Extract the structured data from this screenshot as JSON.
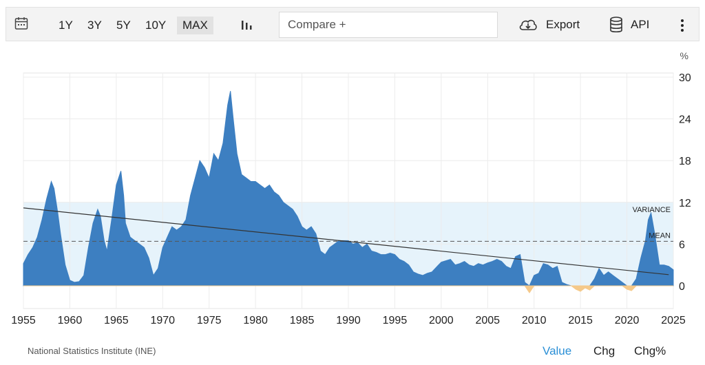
{
  "toolbar": {
    "ranges": [
      "1Y",
      "3Y",
      "5Y",
      "10Y",
      "MAX"
    ],
    "active_range": "MAX",
    "compare_placeholder": "Compare +",
    "export_label": "Export",
    "api_label": "API",
    "icons": {
      "calendar": "calendar-icon",
      "chart_type": "bar-chart-icon",
      "export": "cloud-download-icon",
      "api": "database-icon",
      "menu": "vertical-dots-icon"
    }
  },
  "footer": {
    "source": "National Statistics Institute (INE)",
    "tabs": [
      "Value",
      "Chg",
      "Chg%"
    ],
    "active_tab": "Value"
  },
  "colors": {
    "area": "#3d7fc1",
    "negative": "#f5c98a",
    "variance_band": "#e6f3fb",
    "accent_link": "#2a8fd6"
  },
  "chart_data": {
    "type": "area",
    "unit_label": "%",
    "ylim": [
      -2,
      30
    ],
    "yticks": [
      0,
      6,
      12,
      18,
      24,
      30
    ],
    "xlim": [
      1955,
      2025
    ],
    "xticks": [
      1955,
      1960,
      1965,
      1970,
      1975,
      1980,
      1985,
      1990,
      1995,
      2000,
      2005,
      2010,
      2015,
      2020,
      2025
    ],
    "annotations": {
      "variance": "VARIANCE",
      "mean": "MEAN"
    },
    "mean_value": 6.4,
    "variance_band": [
      0,
      12
    ],
    "trend_line": {
      "x": [
        1955,
        2024.5
      ],
      "y": [
        11.2,
        1.6
      ]
    },
    "series": [
      {
        "x": [
          1955,
          1955.5,
          1956,
          1956.5,
          1957,
          1957.5,
          1958,
          1958.3,
          1958.7,
          1959,
          1959.5,
          1960,
          1960.5,
          1961,
          1961.5,
          1962,
          1962.5,
          1963,
          1963.3,
          1963.7,
          1964,
          1964.5,
          1965,
          1965.5,
          1965.8,
          1966,
          1966.5,
          1967,
          1967.5,
          1968,
          1968.5,
          1969,
          1969.5,
          1970,
          1970.5,
          1971,
          1971.5,
          1972,
          1972.5,
          1973,
          1973.5,
          1974,
          1974.5,
          1975,
          1975.5,
          1976,
          1976.5,
          1977,
          1977.3,
          1977.6,
          1978,
          1978.5,
          1979,
          1979.5,
          1980,
          1980.5,
          1981,
          1981.5,
          1982,
          1982.5,
          1983,
          1983.5,
          1984,
          1984.5,
          1985,
          1985.5,
          1986,
          1986.5,
          1987,
          1987.5,
          1988,
          1988.5,
          1989,
          1989.5,
          1990,
          1990.5,
          1991,
          1991.5,
          1992,
          1992.5,
          1993,
          1993.5,
          1994,
          1994.5,
          1995,
          1995.5,
          1996,
          1996.5,
          1997,
          1997.5,
          1998,
          1998.5,
          1999,
          1999.5,
          2000,
          2000.5,
          2001,
          2001.5,
          2002,
          2002.5,
          2003,
          2003.5,
          2004,
          2004.5,
          2005,
          2005.5,
          2006,
          2006.5,
          2007,
          2007.5,
          2008,
          2008.5,
          2009,
          2009.5,
          2010,
          2010.5,
          2011,
          2011.5,
          2012,
          2012.5,
          2013,
          2013.5,
          2014,
          2014.5,
          2015,
          2015.5,
          2016,
          2016.5,
          2017,
          2017.5,
          2018,
          2018.5,
          2019,
          2019.5,
          2020,
          2020.5,
          2021,
          2021.5,
          2022,
          2022.3,
          2022.6,
          2023,
          2023.5,
          2024,
          2024.5,
          2025
        ],
        "values": [
          3.2,
          4.5,
          5.5,
          7.0,
          9.5,
          12.5,
          15.0,
          14.0,
          10.5,
          7.5,
          3.0,
          0.8,
          0.5,
          0.6,
          1.5,
          5.5,
          9.0,
          11.0,
          10.0,
          6.5,
          5.0,
          9.5,
          14.5,
          16.5,
          13.0,
          9.0,
          7.0,
          6.5,
          6.0,
          5.5,
          4.0,
          1.5,
          2.5,
          5.5,
          7.0,
          8.5,
          8.0,
          8.5,
          9.5,
          13.0,
          15.5,
          18.0,
          17.0,
          15.5,
          19.0,
          18.0,
          20.5,
          26.0,
          28.0,
          24.0,
          19.0,
          16.0,
          15.5,
          15.0,
          15.0,
          14.5,
          14.0,
          14.5,
          13.5,
          13.0,
          12.0,
          11.5,
          11.0,
          10.0,
          8.5,
          8.0,
          8.5,
          7.5,
          5.0,
          4.5,
          5.5,
          6.0,
          6.5,
          6.5,
          6.5,
          6.0,
          6.2,
          5.5,
          6.0,
          5.0,
          4.8,
          4.5,
          4.5,
          4.7,
          4.5,
          3.8,
          3.5,
          3.0,
          2.0,
          1.7,
          1.5,
          1.8,
          2.0,
          2.7,
          3.4,
          3.6,
          3.8,
          3.0,
          3.2,
          3.5,
          3.0,
          2.8,
          3.2,
          3.0,
          3.3,
          3.5,
          3.8,
          3.5,
          2.8,
          2.5,
          4.2,
          4.5,
          0.5,
          -1.0,
          1.5,
          1.8,
          3.2,
          3.0,
          2.5,
          2.8,
          0.5,
          0.2,
          0.0,
          -0.5,
          -0.8,
          -0.3,
          -0.6,
          1.0,
          2.5,
          1.5,
          2.0,
          1.5,
          1.0,
          0.5,
          -0.5,
          -0.7,
          1.0,
          4.0,
          6.5,
          9.5,
          10.5,
          7.5,
          3.0,
          3.0,
          2.8,
          2.3
        ]
      }
    ]
  }
}
